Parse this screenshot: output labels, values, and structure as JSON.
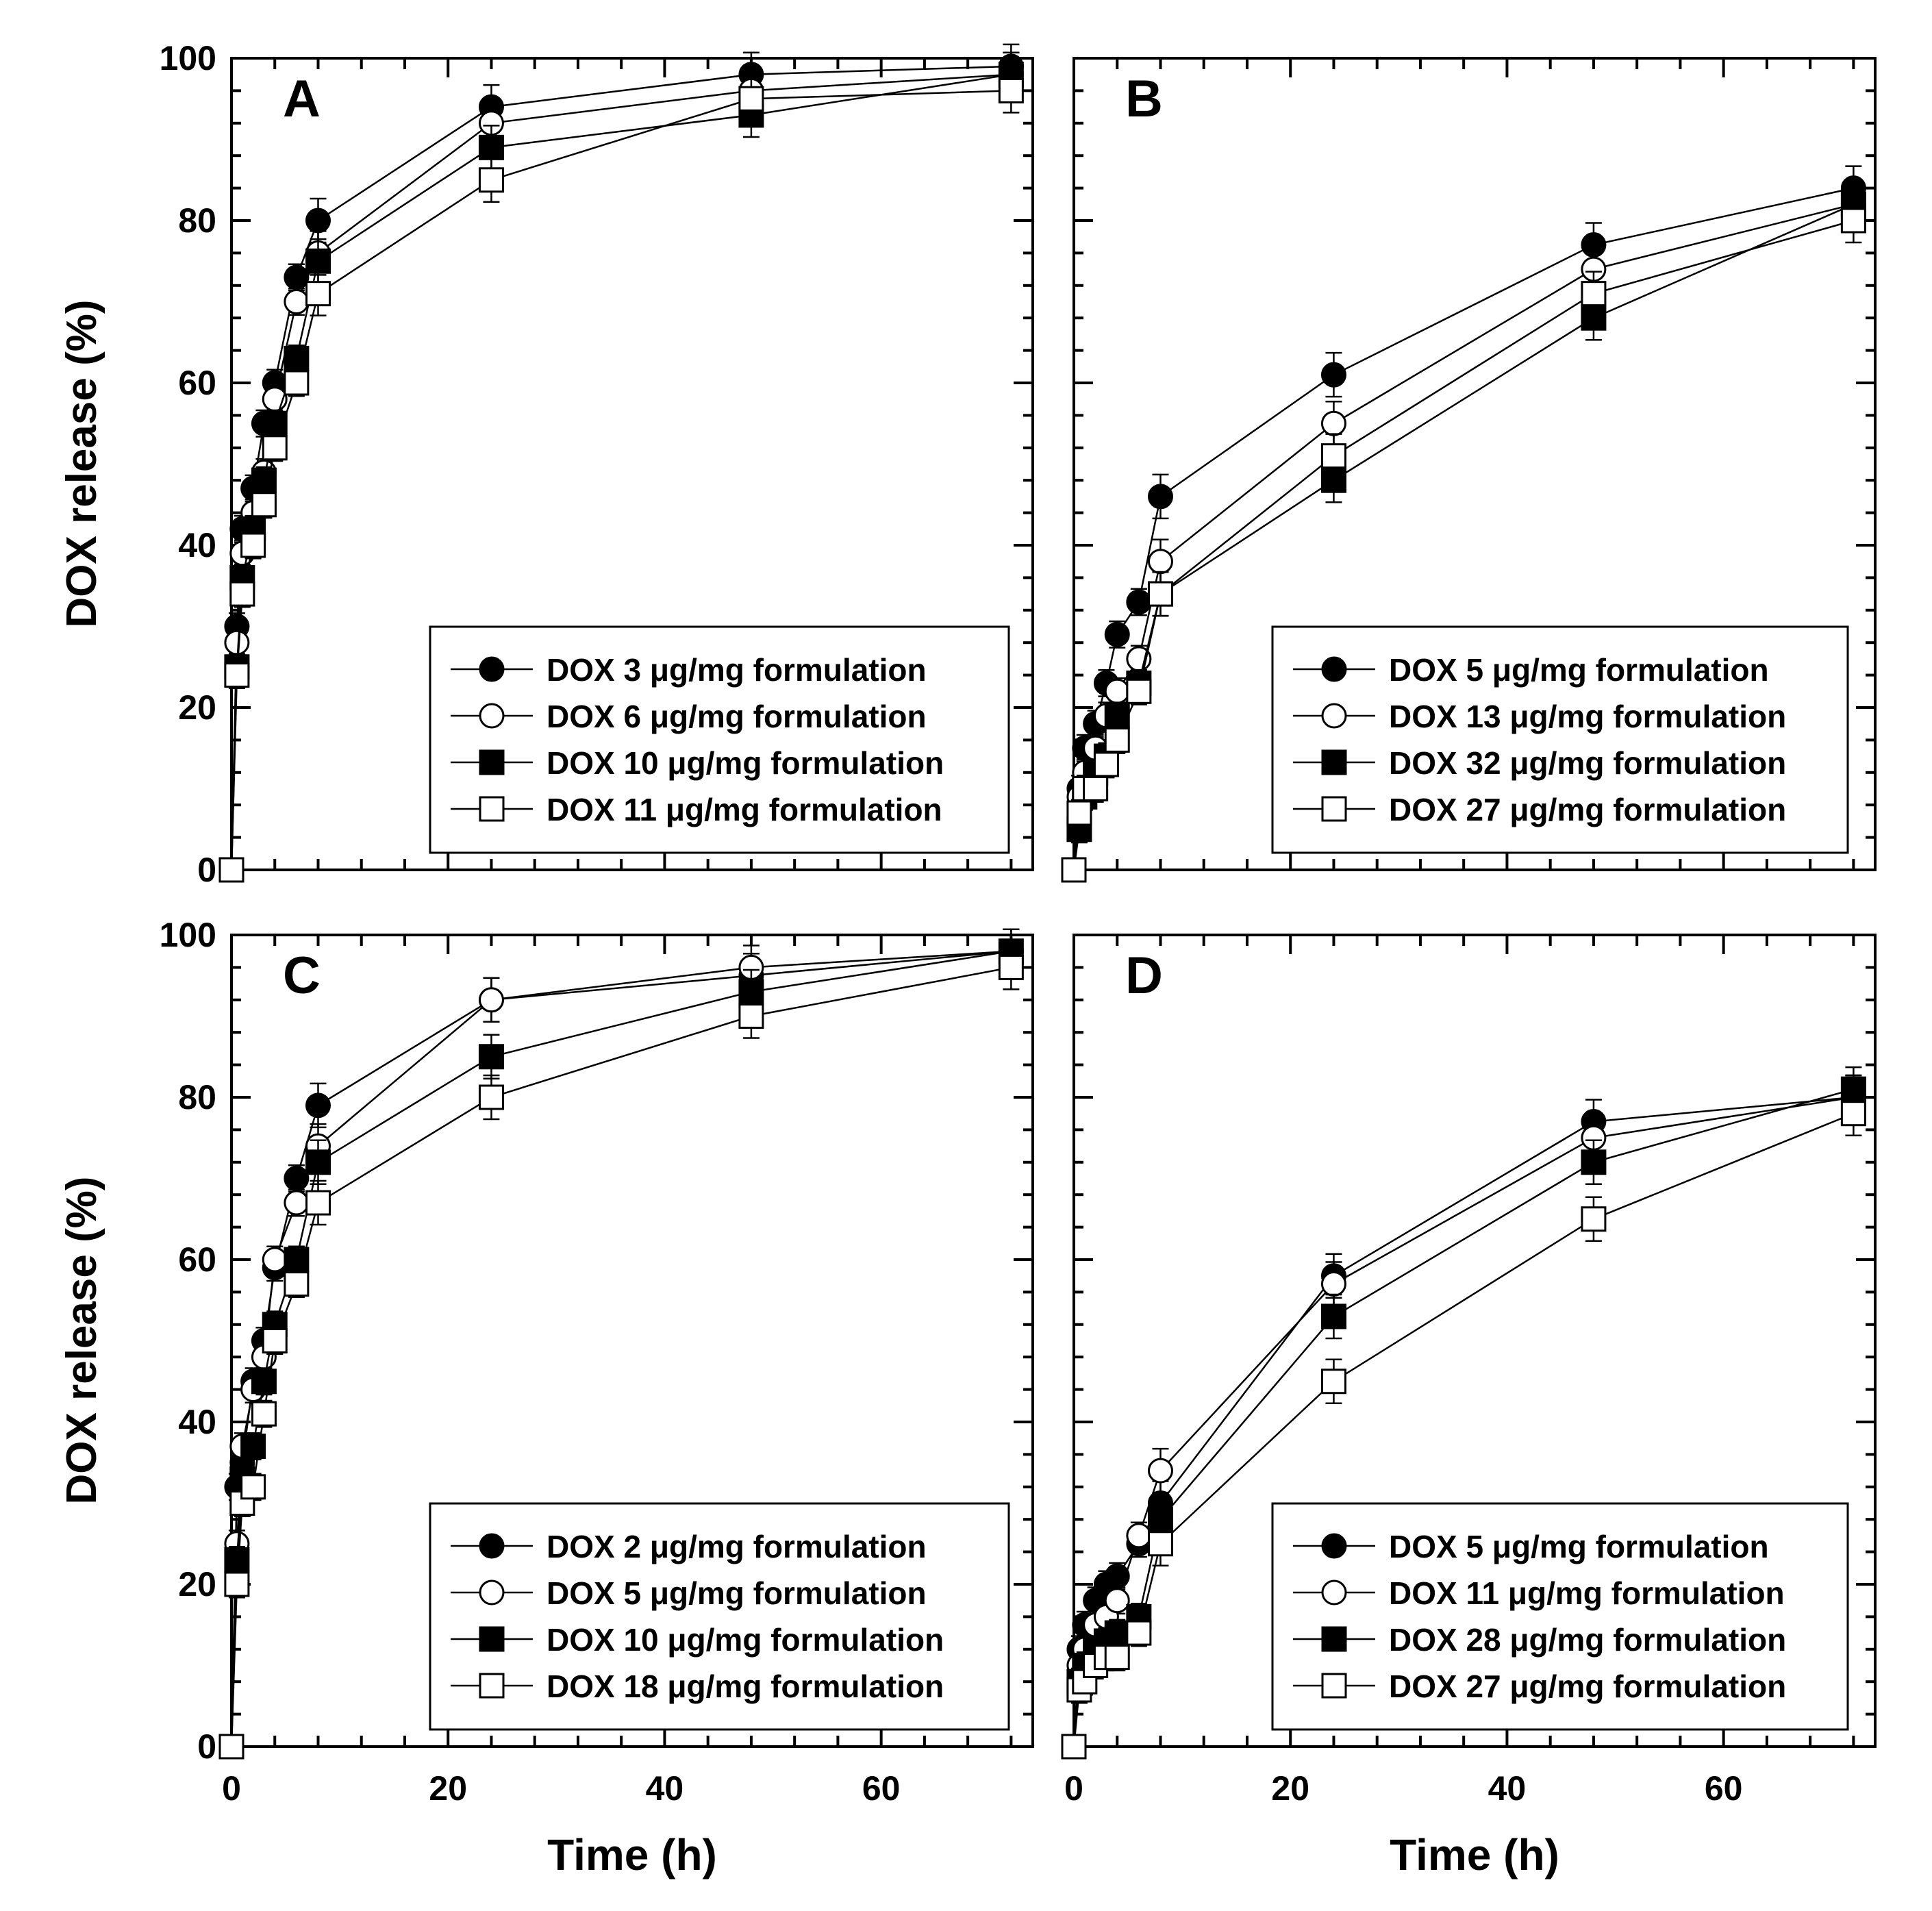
{
  "figure": {
    "y_axis_label": "DOX release (%)",
    "x_axis_label": "Time (h)"
  },
  "chart_data": [
    {
      "type": "line",
      "panel": "A",
      "xlabel": "Time (h)",
      "ylabel": "DOX release (%)",
      "xlim": [
        0,
        74
      ],
      "ylim": [
        0,
        100
      ],
      "x_ticks": [
        0,
        20,
        40,
        60
      ],
      "y_ticks": [
        0,
        20,
        40,
        60,
        80,
        100
      ],
      "x": [
        0,
        0.5,
        1,
        2,
        3,
        4,
        6,
        8,
        24,
        48,
        72
      ],
      "legend_position": "bottom-right",
      "series": [
        {
          "name": "DOX 3 μg/mg formulation",
          "marker": "filled-circle",
          "values": [
            0,
            30,
            42,
            47,
            55,
            60,
            73,
            80,
            94,
            98,
            99
          ]
        },
        {
          "name": "DOX 6 μg/mg formulation",
          "marker": "open-circle",
          "values": [
            0,
            28,
            39,
            44,
            49,
            58,
            70,
            76,
            92,
            96,
            98
          ]
        },
        {
          "name": "DOX 10 μg/mg formulation",
          "marker": "filled-square",
          "values": [
            0,
            25,
            36,
            42,
            48,
            55,
            63,
            75,
            89,
            93,
            98
          ]
        },
        {
          "name": "DOX 11 μg/mg formulation",
          "marker": "open-square",
          "values": [
            0,
            24,
            34,
            40,
            45,
            52,
            60,
            71,
            85,
            95,
            96
          ]
        }
      ]
    },
    {
      "type": "line",
      "panel": "B",
      "xlabel": "Time (h)",
      "ylabel": "DOX release (%)",
      "xlim": [
        0,
        74
      ],
      "ylim": [
        0,
        100
      ],
      "x_ticks": [
        0,
        20,
        40,
        60
      ],
      "y_ticks": [
        0,
        20,
        40,
        60,
        80,
        100
      ],
      "x": [
        0,
        0.5,
        1,
        2,
        3,
        4,
        6,
        8,
        24,
        48,
        72
      ],
      "legend_position": "bottom-right",
      "series": [
        {
          "name": "DOX 5 μg/mg formulation",
          "marker": "filled-circle",
          "values": [
            0,
            10,
            15,
            18,
            23,
            29,
            33,
            46,
            61,
            77,
            84
          ]
        },
        {
          "name": "DOX 13 μg/mg formulation",
          "marker": "open-circle",
          "values": [
            0,
            9,
            12,
            15,
            19,
            22,
            26,
            38,
            55,
            74,
            82
          ]
        },
        {
          "name": "DOX 32 μg/mg formulation",
          "marker": "filled-square",
          "values": [
            0,
            5,
            9,
            12,
            14,
            19,
            23,
            34,
            48,
            68,
            82
          ]
        },
        {
          "name": "DOX 27 μg/mg formulation",
          "marker": "open-square",
          "values": [
            0,
            7,
            10,
            10,
            13,
            16,
            22,
            34,
            51,
            71,
            80
          ]
        }
      ]
    },
    {
      "type": "line",
      "panel": "C",
      "xlabel": "Time (h)",
      "ylabel": "DOX release (%)",
      "xlim": [
        0,
        74
      ],
      "ylim": [
        0,
        100
      ],
      "x_ticks": [
        0,
        20,
        40,
        60
      ],
      "y_ticks": [
        0,
        20,
        40,
        60,
        80,
        100
      ],
      "x": [
        0,
        0.5,
        1,
        2,
        3,
        4,
        6,
        8,
        24,
        48,
        72
      ],
      "legend_position": "bottom-right",
      "series": [
        {
          "name": "DOX 2 μg/mg formulation",
          "marker": "filled-circle",
          "values": [
            0,
            32,
            35,
            45,
            50,
            59,
            70,
            79,
            92,
            95,
            98
          ]
        },
        {
          "name": "DOX 5 μg/mg formulation",
          "marker": "open-circle",
          "values": [
            0,
            25,
            37,
            44,
            48,
            60,
            67,
            74,
            92,
            96,
            98
          ]
        },
        {
          "name": "DOX 10 μg/mg formulation",
          "marker": "filled-square",
          "values": [
            0,
            23,
            33,
            37,
            45,
            52,
            60,
            72,
            85,
            93,
            98
          ]
        },
        {
          "name": "DOX 18 μg/mg formulation",
          "marker": "open-square",
          "values": [
            0,
            20,
            30,
            32,
            41,
            50,
            57,
            67,
            80,
            90,
            96
          ]
        }
      ]
    },
    {
      "type": "line",
      "panel": "D",
      "xlabel": "Time (h)",
      "ylabel": "DOX release (%)",
      "xlim": [
        0,
        74
      ],
      "ylim": [
        0,
        100
      ],
      "x_ticks": [
        0,
        20,
        40,
        60
      ],
      "y_ticks": [
        0,
        20,
        40,
        60,
        80,
        100
      ],
      "x": [
        0,
        0.5,
        1,
        2,
        3,
        4,
        6,
        8,
        24,
        48,
        72
      ],
      "legend_position": "bottom-right",
      "series": [
        {
          "name": "DOX 5 μg/mg formulation",
          "marker": "filled-circle",
          "values": [
            0,
            12,
            15,
            18,
            20,
            21,
            25,
            30,
            58,
            77,
            80
          ]
        },
        {
          "name": "DOX 11 μg/mg formulation",
          "marker": "open-circle",
          "values": [
            0,
            10,
            12,
            15,
            16,
            18,
            26,
            34,
            57,
            75,
            80
          ]
        },
        {
          "name": "DOX 28 μg/mg formulation",
          "marker": "filled-square",
          "values": [
            0,
            8,
            10,
            12,
            13,
            14,
            16,
            28,
            53,
            72,
            81
          ]
        },
        {
          "name": "DOX 27 μg/mg formulation",
          "marker": "open-square",
          "values": [
            0,
            7,
            8,
            10,
            11,
            11,
            14,
            25,
            45,
            65,
            78
          ]
        }
      ]
    }
  ]
}
